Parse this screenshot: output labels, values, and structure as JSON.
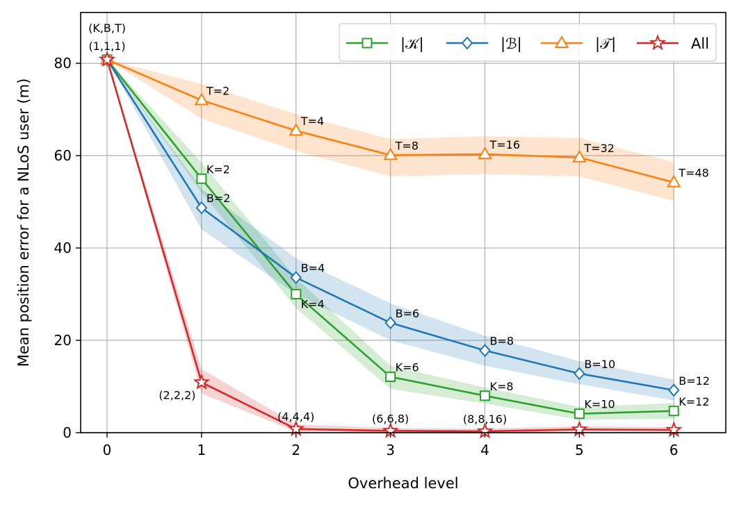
{
  "chart_data": {
    "type": "line",
    "title": "",
    "xlabel": "Overhead level",
    "ylabel": "Mean position error for a NLoS user (m)",
    "x": [
      0,
      1,
      2,
      3,
      4,
      5,
      6
    ],
    "xlim": [
      -0.28,
      6.55
    ],
    "ylim": [
      0,
      91
    ],
    "xticks": [
      0,
      1,
      2,
      3,
      4,
      5,
      6
    ],
    "yticks": [
      0,
      20,
      40,
      60,
      80
    ],
    "grid": true,
    "legend_position": "top-right",
    "series": [
      {
        "name": "|𝒦|",
        "color": "#2ca02c",
        "marker": "square",
        "values": [
          80.8,
          55.0,
          30.0,
          12.1,
          8.0,
          4.1,
          4.7
        ],
        "band_low": [
          80.8,
          52.0,
          27.0,
          9.5,
          6.3,
          2.8,
          3.0
        ],
        "band_high": [
          80.8,
          58.5,
          33.5,
          14.5,
          9.8,
          5.6,
          6.4
        ],
        "labels": [
          "",
          "K=2",
          "K=4",
          "K=6",
          "K=8",
          "K=10",
          "K=12"
        ]
      },
      {
        "name": "|ℬ|",
        "color": "#1f77b4",
        "marker": "diamond",
        "values": [
          80.8,
          48.7,
          33.6,
          23.8,
          17.8,
          12.8,
          9.2
        ],
        "band_low": [
          80.8,
          44.0,
          30.0,
          20.0,
          14.5,
          10.5,
          7.0
        ],
        "band_high": [
          80.8,
          52.8,
          37.8,
          28.0,
          21.0,
          15.5,
          11.5
        ],
        "labels": [
          "",
          "B=2",
          "B=4",
          "B=6",
          "B=8",
          "B=10",
          "B=12"
        ]
      },
      {
        "name": "|𝒯|",
        "color": "#ff7f0e",
        "marker": "triangle",
        "values": [
          80.8,
          72.0,
          65.4,
          60.1,
          60.3,
          59.6,
          54.2
        ],
        "band_low": [
          80.8,
          68.0,
          61.0,
          55.5,
          56.0,
          55.5,
          50.2
        ],
        "band_high": [
          80.8,
          75.5,
          69.0,
          63.6,
          64.2,
          63.8,
          58.6
        ],
        "labels": [
          "",
          "T=2",
          "T=4",
          "T=8",
          "T=16",
          "T=32",
          "T=48"
        ]
      },
      {
        "name": "All",
        "color": "#d62728",
        "marker": "star",
        "values": [
          80.8,
          10.9,
          0.8,
          0.4,
          0.3,
          0.7,
          0.6
        ],
        "band_low": [
          80.8,
          8.5,
          0.2,
          0.1,
          0.0,
          0.2,
          0.1
        ],
        "band_high": [
          80.8,
          13.8,
          1.8,
          1.0,
          0.9,
          1.4,
          1.2
        ],
        "labels": [
          "",
          "(2,2,2)",
          "(4,4,4)",
          "(6,6,8)",
          "(8,8,16)",
          "",
          ""
        ]
      }
    ],
    "annotations": [
      "(K,B,T)",
      "(1,1,1)"
    ]
  }
}
